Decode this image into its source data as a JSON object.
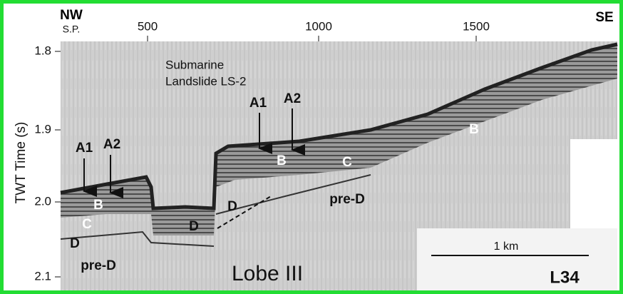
{
  "header": {
    "left": "NW",
    "left_sub": "S.P.",
    "right": "SE"
  },
  "x_axis": {
    "ticks": [
      "500",
      "1000",
      "1500"
    ]
  },
  "y_axis": {
    "label": "TWT Time (s)",
    "ticks": [
      "1.8",
      "1.9",
      "2.0",
      "2.1"
    ]
  },
  "title": {
    "line1": "Submarine",
    "line2": "Landslide LS-2"
  },
  "labels": [
    "A1",
    "A2",
    "B",
    "C",
    "D",
    "pre-D",
    "D",
    "D",
    "A1",
    "A2",
    "B",
    "C",
    "pre-D",
    "B"
  ],
  "scale_bar": "1 km",
  "line_id": "L34",
  "caption": "Lobe III"
}
